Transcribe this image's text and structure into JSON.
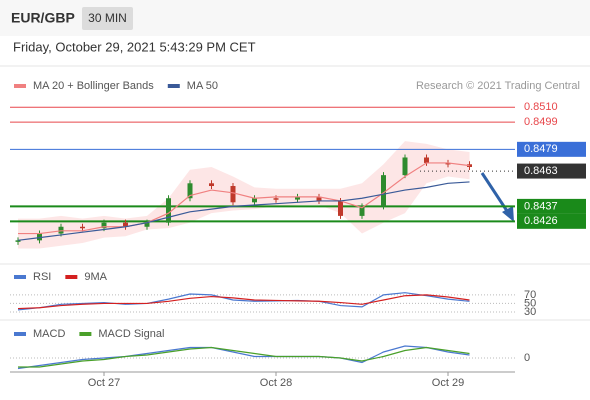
{
  "header": {
    "symbol": "EUR/GBP",
    "timeframe": "30 MIN",
    "timestamp": "Friday, October 29, 2021 5:43:29 PM CET"
  },
  "chart_data": [
    {
      "type": "line",
      "credit": "Research © 2021 Trading Central",
      "categories": [
        null,
        null,
        null,
        null,
        "Oct 27",
        null,
        null,
        null,
        null,
        null,
        null,
        null,
        "Oct 28",
        null,
        null,
        null,
        null,
        null,
        null,
        null,
        "Oct 29",
        null
      ],
      "values": [
        0.8412,
        0.8417,
        0.8422,
        0.8421,
        0.8425,
        0.8422,
        0.8425,
        0.8443,
        0.8454,
        0.8452,
        0.844,
        0.8443,
        0.8442,
        0.8444,
        0.8441,
        0.843,
        0.8437,
        0.846,
        0.8473,
        0.8469,
        0.8468,
        0.8466
      ],
      "up_color": "#2e8b2e",
      "down_color": "#c0392b",
      "series": [
        {
          "name": "MA 20 + Bollinger Bands",
          "color": "#f08080",
          "band_color": "#fde0e0",
          "values": [
            0.8417,
            0.8417,
            0.8419,
            0.8419,
            0.8422,
            0.8422,
            0.8425,
            0.8432,
            0.8445,
            0.8449,
            0.8447,
            0.8443,
            0.8444,
            0.8444,
            0.8444,
            0.8441,
            0.8436,
            0.8447,
            0.8459,
            0.8469,
            0.8469,
            0.8467
          ],
          "upper": [
            0.8428,
            0.8428,
            0.843,
            0.8428,
            0.843,
            0.8428,
            0.843,
            0.8443,
            0.8464,
            0.8466,
            0.8459,
            0.8451,
            0.845,
            0.845,
            0.845,
            0.845,
            0.8454,
            0.8468,
            0.8485,
            0.8483,
            0.8479,
            0.8477
          ],
          "lower": [
            0.8406,
            0.8406,
            0.8408,
            0.841,
            0.8414,
            0.8415,
            0.842,
            0.8421,
            0.8425,
            0.8432,
            0.8434,
            0.8435,
            0.8437,
            0.8438,
            0.8438,
            0.8432,
            0.8417,
            0.8425,
            0.8432,
            0.8454,
            0.8459,
            0.8457
          ]
        },
        {
          "name": "MA 50",
          "color": "#3a5a98",
          "values": [
            0.8412,
            0.8414,
            0.8416,
            0.8418,
            0.842,
            0.8422,
            0.8425,
            0.8429,
            0.8433,
            0.8435,
            0.8437,
            0.8438,
            0.8439,
            0.844,
            0.8441,
            0.8441,
            0.8443,
            0.8446,
            0.8449,
            0.8451,
            0.8454,
            0.8455
          ]
        }
      ],
      "levels": [
        {
          "value": 0.851,
          "label": "0.8510",
          "color": "#e8474b",
          "label_box": false,
          "style": "solid"
        },
        {
          "value": 0.8499,
          "label": "0.8499",
          "color": "#e8474b",
          "label_box": false,
          "style": "solid"
        },
        {
          "value": 0.8479,
          "label": "0.8479",
          "color": "#3a6fd8",
          "label_box": true,
          "style": "solid"
        },
        {
          "value": 0.8463,
          "label": "0.8463",
          "color": "#333333",
          "label_box": true,
          "style": "dotted"
        },
        {
          "value": 0.8437,
          "label": "0.8437",
          "color": "#1a8a1a",
          "label_box": true,
          "style": "thick"
        },
        {
          "value": 0.8426,
          "label": "0.8426",
          "color": "#1a8a1a",
          "label_box": true,
          "style": "thick"
        }
      ],
      "ylim": [
        0.8399,
        0.8519
      ]
    },
    {
      "type": "line",
      "series": [
        {
          "name": "RSI",
          "color": "#4a78d0",
          "values": [
            35,
            40,
            48,
            50,
            52,
            48,
            50,
            60,
            72,
            70,
            58,
            55,
            56,
            57,
            55,
            45,
            42,
            70,
            75,
            68,
            60,
            55
          ]
        },
        {
          "name": "9MA",
          "color": "#d42020",
          "values": [
            38,
            40,
            45,
            48,
            50,
            50,
            50,
            55,
            62,
            66,
            63,
            58,
            57,
            56,
            55,
            52,
            48,
            58,
            68,
            70,
            65,
            58
          ]
        }
      ],
      "ylim": [
        16,
        93
      ],
      "yticks": [
        70,
        50,
        30
      ]
    },
    {
      "type": "line",
      "series": [
        {
          "name": "MACD",
          "color": "#4a78d0",
          "values": [
            -0.0007,
            -0.0005,
            -0.0003,
            -0.0001,
            0,
            0.0001,
            0.0003,
            0.0005,
            0.0007,
            0.0007,
            0.0004,
            0.0001,
            0.0001,
            0.0001,
            0.0001,
            0,
            -0.0003,
            0.0004,
            0.0008,
            0.0007,
            0.0004,
            0.0002
          ]
        },
        {
          "name": "MACD Signal",
          "color": "#4aa02a",
          "values": [
            -0.0006,
            -0.0006,
            -0.0004,
            -0.0002,
            -0.0001,
            0.0001,
            0.0002,
            0.0004,
            0.0006,
            0.0007,
            0.0005,
            0.0003,
            0.0001,
            0.0001,
            0.0001,
            0,
            -0.0002,
            0.0001,
            0.0005,
            0.0007,
            0.0005,
            0.0003
          ]
        }
      ],
      "ylim": [
        -0.0008,
        0.0012
      ],
      "yticks": [
        0
      ]
    }
  ]
}
